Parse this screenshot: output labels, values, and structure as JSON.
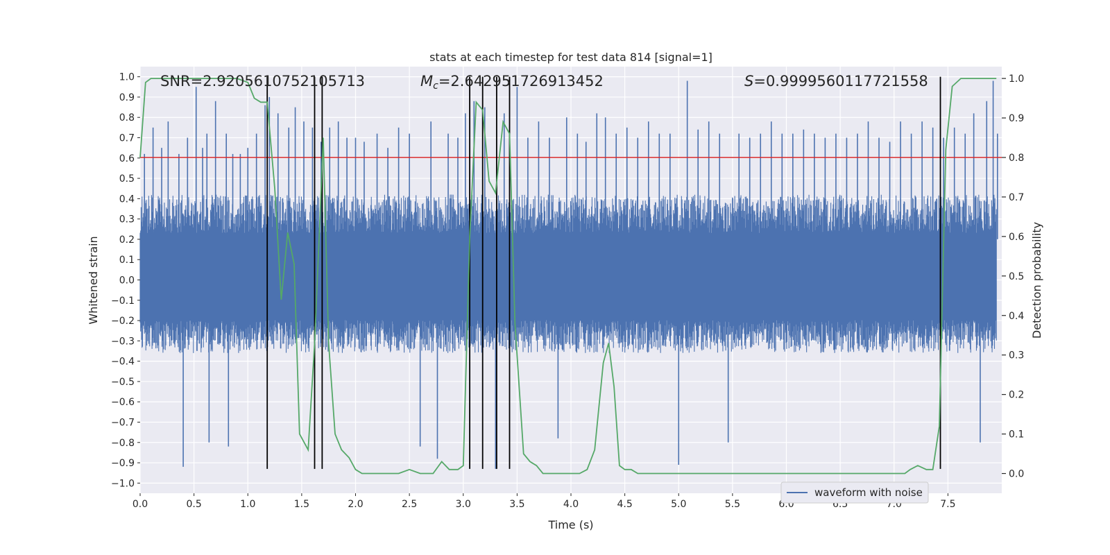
{
  "chart_data": {
    "type": "line",
    "title": "stats at each timestep for test data 814 [signal=1]",
    "xlabel": "Time (s)",
    "ylabel": "Whitened strain",
    "y2label": "Detection probability",
    "xlim": [
      0.0,
      8.0
    ],
    "ylim": [
      -1.05,
      1.05
    ],
    "y2lim": [
      -0.05,
      1.03
    ],
    "x_ticks": [
      0.0,
      0.5,
      1.0,
      1.5,
      2.0,
      2.5,
      3.0,
      3.5,
      4.0,
      4.5,
      5.0,
      5.5,
      6.0,
      6.5,
      7.0,
      7.5
    ],
    "x_tick_labels": [
      "0.0",
      "0.5",
      "1.0",
      "1.5",
      "2.0",
      "2.5",
      "3.0",
      "3.5",
      "4.0",
      "4.5",
      "5.0",
      "5.5",
      "6.0",
      "6.5",
      "7.0",
      "7.5"
    ],
    "y_ticks": [
      -1.0,
      -0.9,
      -0.8,
      -0.7,
      -0.6,
      -0.5,
      -0.4,
      -0.3,
      -0.2,
      -0.1,
      0.0,
      0.1,
      0.2,
      0.3,
      0.4,
      0.5,
      0.6,
      0.7,
      0.8,
      0.9,
      1.0
    ],
    "y_tick_labels": [
      "−1.0",
      "−0.9",
      "−0.8",
      "−0.7",
      "−0.6",
      "−0.5",
      "−0.4",
      "−0.3",
      "−0.2",
      "−0.1",
      "0.0",
      "0.1",
      "0.2",
      "0.3",
      "0.4",
      "0.5",
      "0.6",
      "0.7",
      "0.8",
      "0.9",
      "1.0"
    ],
    "y2_ticks": [
      0.0,
      0.1,
      0.2,
      0.3,
      0.4,
      0.5,
      0.6,
      0.7,
      0.8,
      0.9,
      1.0
    ],
    "y2_tick_labels": [
      "0.0",
      "0.1",
      "0.2",
      "0.3",
      "0.4",
      "0.5",
      "0.6",
      "0.7",
      "0.8",
      "0.9",
      "1.0"
    ],
    "grid": true,
    "legend": {
      "placement": "lower-right",
      "entries": [
        "waveform with noise"
      ]
    },
    "annotations": {
      "snr": "SNR=2.9205610752105713",
      "mc_symbol": "M",
      "mc_sub": "c",
      "mc_value": "=2.642951726913452",
      "s_symbol": "S",
      "s_value": "=0.9999560117721558"
    },
    "threshold": {
      "value": 0.8,
      "axis": "y2",
      "color": "#d62728"
    },
    "vertical_lines": [
      1.18,
      1.62,
      1.69,
      3.06,
      3.18,
      3.31,
      3.43,
      7.43
    ],
    "vertical_lines_range": [
      -0.93,
      1.0
    ],
    "series": [
      {
        "name": "waveform with noise",
        "axis": "y1",
        "color": "#4c72b0",
        "envelope_typical": [
          -0.36,
          0.42
        ],
        "peaks": [
          [
            0.04,
            0.62
          ],
          [
            0.12,
            0.75
          ],
          [
            0.2,
            0.65
          ],
          [
            0.26,
            0.78
          ],
          [
            0.36,
            0.62
          ],
          [
            0.4,
            -0.92
          ],
          [
            0.44,
            0.7
          ],
          [
            0.52,
            0.95
          ],
          [
            0.58,
            0.65
          ],
          [
            0.62,
            0.72
          ],
          [
            0.64,
            -0.8
          ],
          [
            0.7,
            0.88
          ],
          [
            0.8,
            0.72
          ],
          [
            0.82,
            -0.82
          ],
          [
            0.86,
            0.62
          ],
          [
            0.93,
            0.62
          ],
          [
            1.0,
            0.65
          ],
          [
            1.08,
            0.72
          ],
          [
            1.16,
            0.86
          ],
          [
            1.2,
            0.9
          ],
          [
            1.28,
            0.82
          ],
          [
            1.38,
            0.75
          ],
          [
            1.44,
            0.85
          ],
          [
            1.52,
            0.78
          ],
          [
            1.6,
            0.75
          ],
          [
            1.68,
            0.68
          ],
          [
            1.76,
            0.75
          ],
          [
            1.84,
            0.78
          ],
          [
            1.92,
            0.7
          ],
          [
            2.0,
            0.7
          ],
          [
            2.08,
            0.68
          ],
          [
            2.2,
            0.72
          ],
          [
            2.3,
            0.65
          ],
          [
            2.4,
            0.75
          ],
          [
            2.5,
            0.72
          ],
          [
            2.6,
            -0.82
          ],
          [
            2.7,
            0.78
          ],
          [
            2.76,
            -0.88
          ],
          [
            2.86,
            0.72
          ],
          [
            2.95,
            0.7
          ],
          [
            3.02,
            0.82
          ],
          [
            3.1,
            0.88
          ],
          [
            3.2,
            0.85
          ],
          [
            3.3,
            -0.93
          ],
          [
            3.38,
            0.82
          ],
          [
            3.5,
            0.95
          ],
          [
            3.6,
            0.7
          ],
          [
            3.7,
            0.78
          ],
          [
            3.8,
            0.7
          ],
          [
            3.88,
            -0.78
          ],
          [
            3.96,
            0.8
          ],
          [
            4.06,
            0.72
          ],
          [
            4.14,
            0.68
          ],
          [
            4.24,
            0.82
          ],
          [
            4.32,
            0.8
          ],
          [
            4.42,
            0.72
          ],
          [
            4.52,
            0.75
          ],
          [
            4.62,
            0.7
          ],
          [
            4.72,
            0.78
          ],
          [
            4.82,
            0.72
          ],
          [
            4.92,
            0.72
          ],
          [
            5.0,
            -0.91
          ],
          [
            5.08,
            0.98
          ],
          [
            5.18,
            0.74
          ],
          [
            5.28,
            0.78
          ],
          [
            5.38,
            0.72
          ],
          [
            5.46,
            -0.8
          ],
          [
            5.56,
            0.72
          ],
          [
            5.66,
            0.7
          ],
          [
            5.76,
            0.72
          ],
          [
            5.86,
            0.78
          ],
          [
            5.96,
            0.72
          ],
          [
            6.06,
            0.72
          ],
          [
            6.16,
            0.74
          ],
          [
            6.26,
            0.72
          ],
          [
            6.36,
            0.7
          ],
          [
            6.46,
            0.72
          ],
          [
            6.56,
            0.7
          ],
          [
            6.66,
            0.72
          ],
          [
            6.76,
            0.78
          ],
          [
            6.86,
            0.7
          ],
          [
            6.96,
            0.68
          ],
          [
            7.06,
            0.78
          ],
          [
            7.16,
            0.72
          ],
          [
            7.26,
            0.78
          ],
          [
            7.36,
            0.75
          ],
          [
            7.46,
            0.7
          ],
          [
            7.56,
            0.75
          ],
          [
            7.66,
            0.72
          ],
          [
            7.74,
            0.82
          ],
          [
            7.8,
            -0.8
          ],
          [
            7.86,
            0.88
          ],
          [
            7.92,
            0.98
          ],
          [
            7.96,
            0.72
          ]
        ]
      },
      {
        "name": "",
        "axis": "y2",
        "color": "#55a868",
        "x": [
          0.0,
          0.05,
          0.1,
          0.2,
          0.3,
          0.4,
          0.5,
          0.6,
          0.7,
          0.8,
          0.9,
          1.0,
          1.06,
          1.12,
          1.18,
          1.25,
          1.31,
          1.37,
          1.43,
          1.48,
          1.56,
          1.62,
          1.67,
          1.7,
          1.75,
          1.81,
          1.87,
          1.94,
          2.0,
          2.06,
          2.2,
          2.3,
          2.4,
          2.5,
          2.6,
          2.66,
          2.72,
          2.8,
          2.87,
          2.95,
          3.0,
          3.06,
          3.12,
          3.18,
          3.24,
          3.3,
          3.37,
          3.43,
          3.48,
          3.56,
          3.62,
          3.68,
          3.74,
          3.8,
          3.9,
          4.0,
          4.08,
          4.15,
          4.22,
          4.3,
          4.35,
          4.4,
          4.45,
          4.5,
          4.56,
          4.62,
          4.7,
          4.8,
          4.9,
          5.0,
          5.2,
          5.4,
          5.6,
          5.7,
          5.8,
          5.9,
          6.0,
          6.2,
          6.4,
          6.6,
          6.8,
          7.0,
          7.1,
          7.15,
          7.22,
          7.3,
          7.36,
          7.42,
          7.48,
          7.54,
          7.62,
          7.7,
          7.8,
          7.95
        ],
        "values": [
          0.8,
          0.99,
          1.0,
          1.0,
          1.0,
          1.0,
          1.0,
          1.0,
          1.0,
          1.0,
          1.0,
          0.99,
          0.95,
          0.94,
          0.94,
          0.72,
          0.44,
          0.61,
          0.53,
          0.1,
          0.06,
          0.33,
          0.65,
          0.85,
          0.33,
          0.1,
          0.06,
          0.04,
          0.01,
          0.0,
          0.0,
          0.0,
          0.0,
          0.01,
          0.0,
          0.0,
          0.0,
          0.03,
          0.01,
          0.01,
          0.02,
          0.6,
          0.94,
          0.92,
          0.74,
          0.71,
          0.89,
          0.86,
          0.38,
          0.05,
          0.03,
          0.02,
          0.0,
          0.0,
          0.0,
          0.0,
          0.0,
          0.01,
          0.06,
          0.28,
          0.33,
          0.22,
          0.02,
          0.01,
          0.01,
          0.0,
          0.0,
          0.0,
          0.0,
          0.0,
          0.0,
          0.0,
          0.0,
          0.0,
          0.0,
          0.0,
          0.0,
          0.0,
          0.0,
          0.0,
          0.0,
          0.0,
          0.0,
          0.01,
          0.02,
          0.01,
          0.01,
          0.12,
          0.82,
          0.98,
          1.0,
          1.0,
          1.0,
          1.0
        ]
      }
    ]
  }
}
